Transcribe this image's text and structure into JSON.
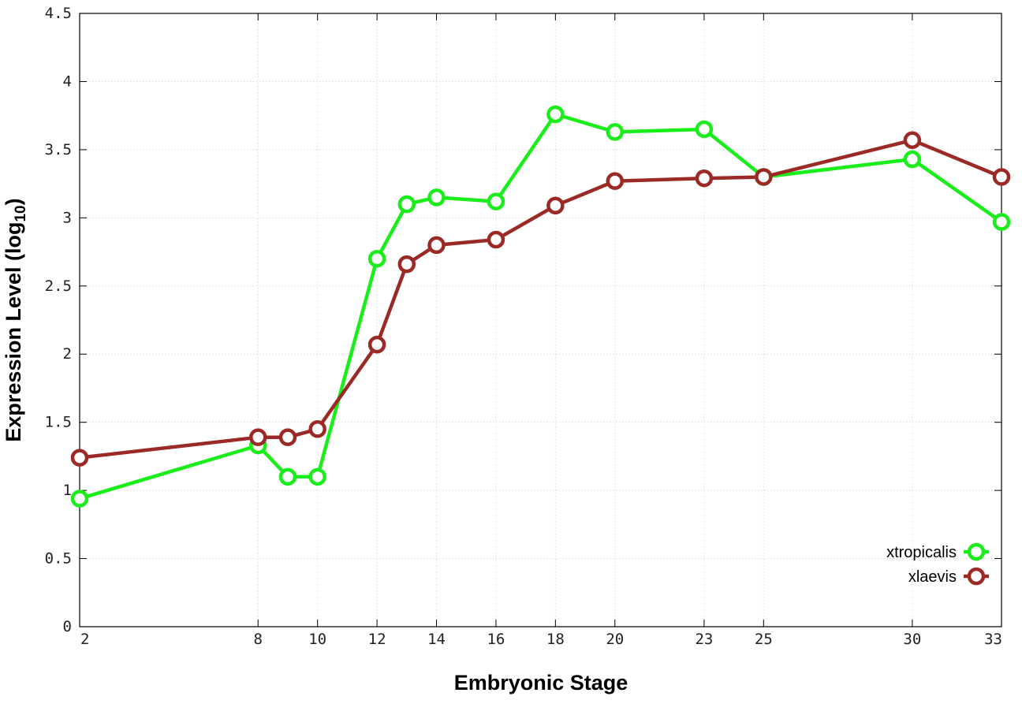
{
  "chart_data": {
    "type": "line",
    "xlabel": "Embryonic Stage",
    "ylabel": "Expression Level (log",
    "ylabel_sub": "10",
    "ylabel_close": ")",
    "x": [
      2,
      8,
      9,
      10,
      12,
      13,
      14,
      16,
      18,
      20,
      23,
      25,
      30,
      33
    ],
    "x_ticks": [
      "2",
      "8",
      "10",
      "12",
      "14",
      "16",
      "18",
      "20",
      "23",
      "25",
      "30",
      "33"
    ],
    "y_ticks": [
      "0",
      "0.5",
      "1",
      "1.5",
      "2",
      "2.5",
      "3",
      "3.5",
      "4",
      "4.5"
    ],
    "xlim": [
      2,
      33
    ],
    "ylim": [
      0,
      4.5
    ],
    "grid": true,
    "legend_position": "bottom-right",
    "series": [
      {
        "name": "xtropicalis",
        "color": "#1aee1a",
        "values": [
          0.94,
          1.33,
          1.1,
          1.1,
          2.7,
          3.1,
          3.15,
          3.12,
          3.76,
          3.63,
          3.65,
          3.3,
          3.43,
          2.97
        ]
      },
      {
        "name": "xlaevis",
        "color": "#9b2a26",
        "values": [
          1.24,
          1.39,
          1.39,
          1.45,
          2.07,
          2.66,
          2.8,
          2.84,
          3.09,
          3.27,
          3.29,
          3.3,
          3.57,
          3.3
        ]
      }
    ]
  }
}
